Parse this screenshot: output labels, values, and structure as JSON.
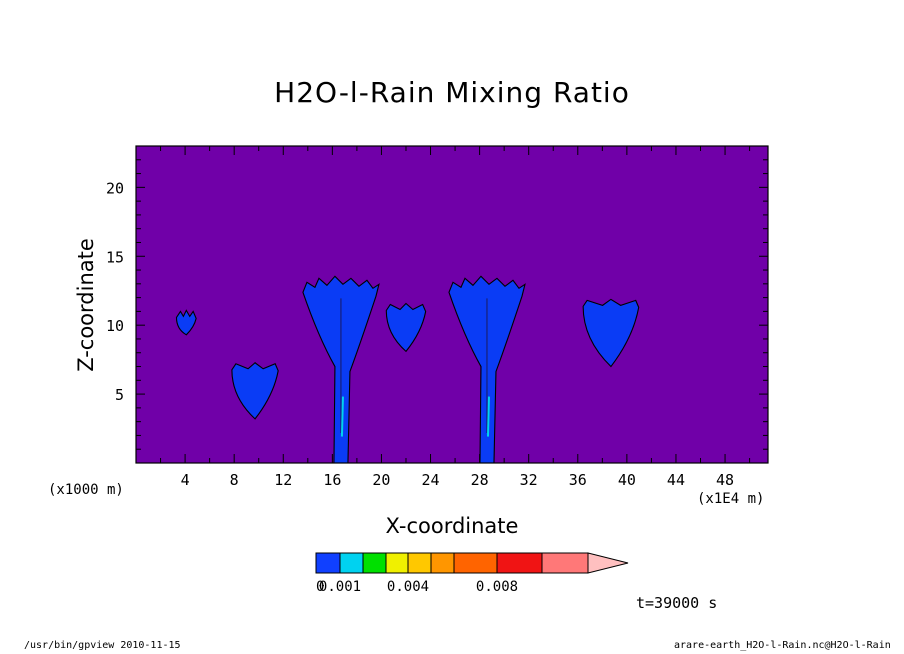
{
  "chart_data": {
    "type": "heatmap",
    "title": "H2O-l-Rain Mixing Ratio",
    "xlabel": "X-coordinate",
    "ylabel": "Z-coordinate",
    "x_unit_note": "(x1000 m)",
    "x_scale_note": "(x1E4 m)",
    "xlim": [
      0,
      51.5
    ],
    "ylim": [
      0,
      23
    ],
    "xticks": [
      4,
      8,
      12,
      16,
      20,
      24,
      28,
      32,
      36,
      40,
      44,
      48
    ],
    "yticks": [
      5,
      10,
      15,
      20
    ],
    "background_color": "#7000a8",
    "feature_color": "#0a3cf5",
    "grid": false,
    "colorbar": {
      "levels": [
        "0.001",
        "0.004",
        "0.008"
      ],
      "bins": [
        "#1040ff",
        "#00d2f0",
        "#00e000",
        "#f0f000",
        "#ffc800",
        "#ff9600",
        "#ff6400",
        "#f01414",
        "#ff7878",
        "#ffc0c0"
      ]
    },
    "features": [
      {
        "x_center": 4.1,
        "z_bottom": 9.3,
        "z_top": 11.0
      },
      {
        "x_center": 9.7,
        "z_bottom": 3.2,
        "z_top": 7.2
      },
      {
        "x_center": 16.7,
        "z_bottom": 0,
        "z_top": 13.4
      },
      {
        "x_center": 22.0,
        "z_bottom": 8.1,
        "z_top": 11.5
      },
      {
        "x_center": 28.6,
        "z_bottom": 0,
        "z_top": 13.4
      },
      {
        "x_center": 38.7,
        "z_bottom": 7.0,
        "z_top": 11.8
      }
    ]
  },
  "annotations": {
    "time": "t=39000 s",
    "footer_left": "/usr/bin/gpview   2010-11-15",
    "footer_right": "arare-earth_H2O-l-Rain.nc@H2O-l-Rain"
  }
}
